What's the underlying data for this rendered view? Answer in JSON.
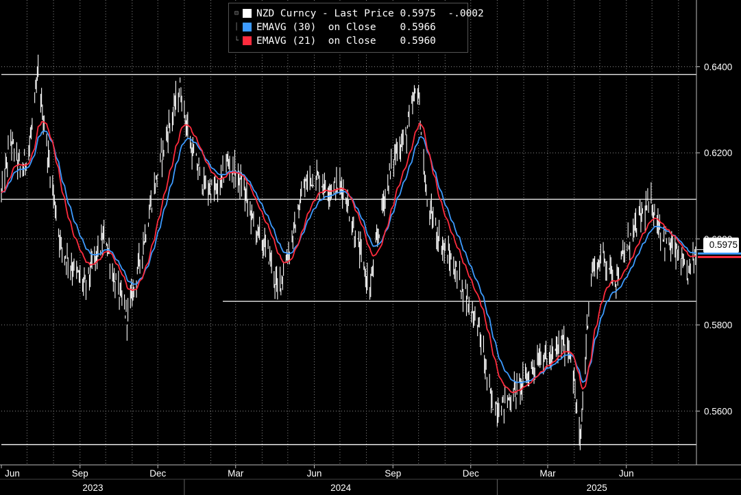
{
  "legend": {
    "items": [
      {
        "label": "NZD Curncy - Last Price",
        "value": "0.5975",
        "change": "-.0002",
        "color": "#ffffff"
      },
      {
        "label": "EMAVG (30)  on Close",
        "value": "0.5966",
        "change": "",
        "color": "#3d9bff"
      },
      {
        "label": "EMAVG (21)  on Close",
        "value": "0.5960",
        "change": "",
        "color": "#ff2b3d"
      }
    ]
  },
  "last_price_tag": "0.5975",
  "chart_data": {
    "type": "line",
    "title": "",
    "series_main": "NZD Curncy - Last Price",
    "x_start": "2023-06-01",
    "x_end": "2025-08-22",
    "ylim": [
      0.5475,
      0.6555
    ],
    "y_ticks": [
      "0.5600",
      "0.5800",
      "0.6000",
      "0.6200",
      "0.6400"
    ],
    "x_month_ticks": [
      {
        "label": "Jun",
        "date": "2023-06-01"
      },
      {
        "label": "Sep",
        "date": "2023-09-01"
      },
      {
        "label": "Dec",
        "date": "2023-12-01"
      },
      {
        "label": "Mar",
        "date": "2024-03-01"
      },
      {
        "label": "Jun",
        "date": "2024-06-01"
      },
      {
        "label": "Sep",
        "date": "2024-09-01"
      },
      {
        "label": "Dec",
        "date": "2024-12-01"
      },
      {
        "label": "Mar",
        "date": "2025-03-01"
      },
      {
        "label": "Jun",
        "date": "2025-06-01"
      }
    ],
    "x_year_labels": [
      {
        "label": "2023",
        "start": "2023-06-01",
        "end": "2024-01-01"
      },
      {
        "label": "2024",
        "start": "2024-01-01",
        "end": "2025-01-01"
      },
      {
        "label": "2025",
        "start": "2025-01-01",
        "end": "2025-08-22"
      }
    ],
    "horizontal_lines": [
      {
        "value": 0.6382,
        "from": "2023-06-01",
        "to": "2025-08-22"
      },
      {
        "value": 0.6092,
        "from": "2023-06-01",
        "to": "2025-08-22"
      },
      {
        "value": 0.5855,
        "from": "2024-02-15",
        "to": "2025-08-22"
      },
      {
        "value": 0.5522,
        "from": "2023-06-01",
        "to": "2025-08-22"
      }
    ],
    "price_anchors": [
      [
        "2023-06-01",
        0.61
      ],
      [
        "2023-06-12",
        0.623
      ],
      [
        "2023-06-25",
        0.615
      ],
      [
        "2023-07-05",
        0.623
      ],
      [
        "2023-07-14",
        0.638
      ],
      [
        "2023-07-25",
        0.62
      ],
      [
        "2023-08-10",
        0.598
      ],
      [
        "2023-08-25",
        0.593
      ],
      [
        "2023-09-07",
        0.589
      ],
      [
        "2023-09-20",
        0.596
      ],
      [
        "2023-10-01",
        0.601
      ],
      [
        "2023-10-10",
        0.591
      ],
      [
        "2023-10-26",
        0.582
      ],
      [
        "2023-11-10",
        0.595
      ],
      [
        "2023-11-25",
        0.61
      ],
      [
        "2023-12-10",
        0.623
      ],
      [
        "2023-12-27",
        0.635
      ],
      [
        "2024-01-10",
        0.62
      ],
      [
        "2024-01-25",
        0.612
      ],
      [
        "2024-02-10",
        0.611
      ],
      [
        "2024-02-20",
        0.618
      ],
      [
        "2024-03-08",
        0.613
      ],
      [
        "2024-03-25",
        0.602
      ],
      [
        "2024-04-10",
        0.596
      ],
      [
        "2024-04-19",
        0.588
      ],
      [
        "2024-05-05",
        0.599
      ],
      [
        "2024-05-20",
        0.612
      ],
      [
        "2024-06-01",
        0.615
      ],
      [
        "2024-06-15",
        0.612
      ],
      [
        "2024-07-05",
        0.612
      ],
      [
        "2024-07-20",
        0.6
      ],
      [
        "2024-08-05",
        0.588
      ],
      [
        "2024-08-20",
        0.608
      ],
      [
        "2024-09-05",
        0.621
      ],
      [
        "2024-09-15",
        0.623
      ],
      [
        "2024-09-30",
        0.636
      ],
      [
        "2024-10-10",
        0.609
      ],
      [
        "2024-10-25",
        0.6
      ],
      [
        "2024-11-10",
        0.594
      ],
      [
        "2024-11-25",
        0.587
      ],
      [
        "2024-12-10",
        0.58
      ],
      [
        "2024-12-25",
        0.562
      ],
      [
        "2025-01-05",
        0.561
      ],
      [
        "2025-01-20",
        0.564
      ],
      [
        "2025-02-05",
        0.568
      ],
      [
        "2025-02-20",
        0.573
      ],
      [
        "2025-03-05",
        0.572
      ],
      [
        "2025-03-18",
        0.576
      ],
      [
        "2025-03-28",
        0.574
      ],
      [
        "2025-04-08",
        0.552
      ],
      [
        "2025-04-20",
        0.592
      ],
      [
        "2025-05-05",
        0.596
      ],
      [
        "2025-05-20",
        0.591
      ],
      [
        "2025-06-05",
        0.6
      ],
      [
        "2025-06-20",
        0.606
      ],
      [
        "2025-07-01",
        0.608
      ],
      [
        "2025-07-15",
        0.6
      ],
      [
        "2025-08-01",
        0.596
      ],
      [
        "2025-08-10",
        0.591
      ],
      [
        "2025-08-22",
        0.5975
      ]
    ]
  },
  "colors": {
    "background": "#000000",
    "price": "#ffffff",
    "ema30": "#3d9bff",
    "ema21": "#ff2b3d",
    "grid": "#8a8a8a",
    "hline": "#ffffff"
  }
}
